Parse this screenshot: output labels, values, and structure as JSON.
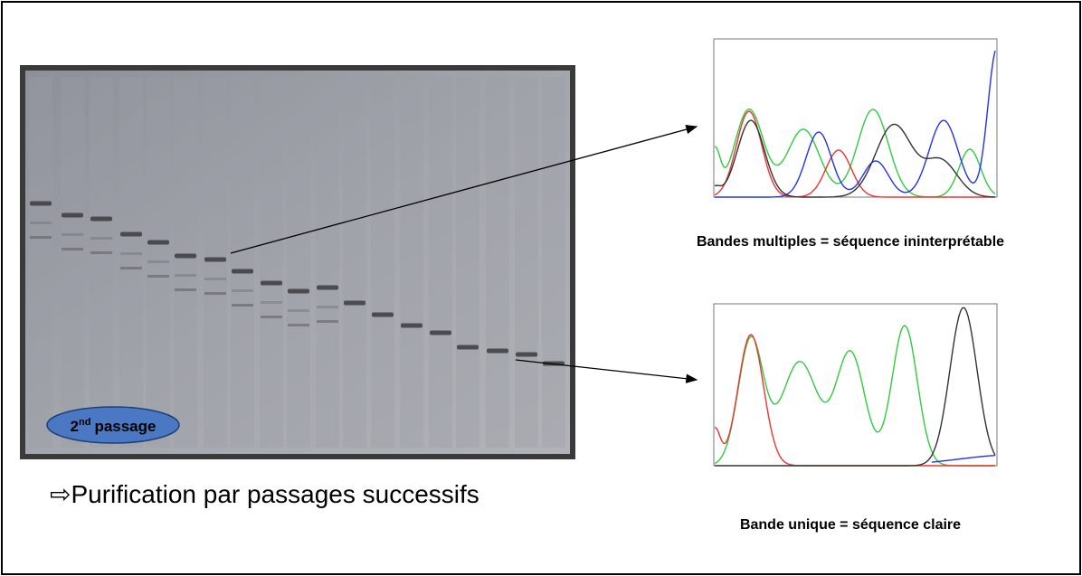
{
  "gel": {
    "badge": {
      "number": "2",
      "suffix": "nd",
      "word": "passage"
    },
    "caption": "⇨Purification par passages successifs"
  },
  "traces": [
    {
      "caption": "Bandes multiples = séquence ininterprétable"
    },
    {
      "caption": "Bande unique = séquence claire"
    }
  ]
}
